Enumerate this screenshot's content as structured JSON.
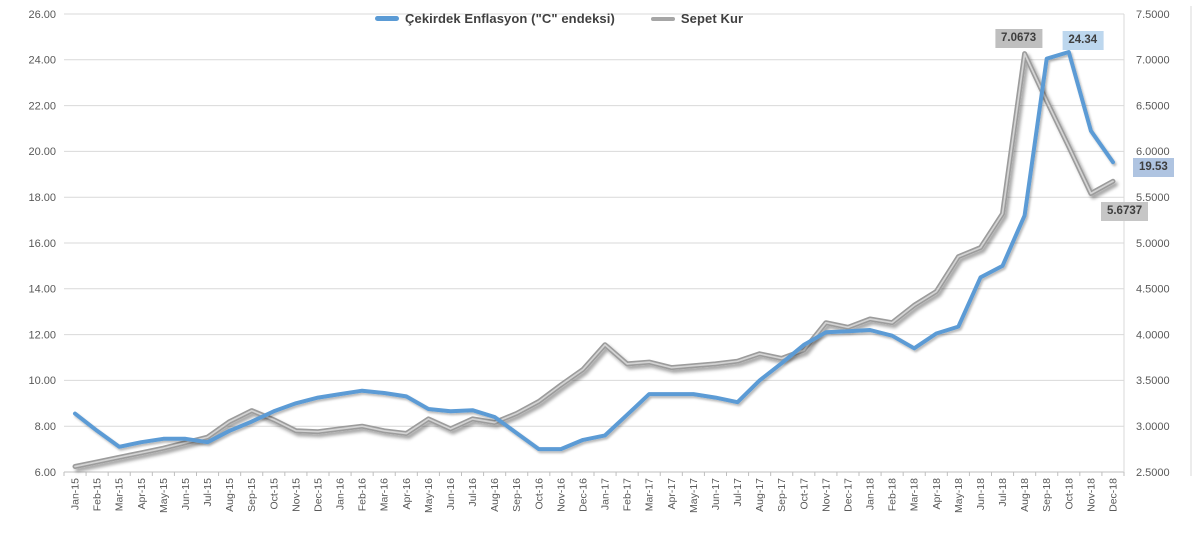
{
  "chart_data": {
    "type": "line",
    "title": "",
    "grid": true,
    "legend_position": "top",
    "categories": [
      "Jan-15",
      "Feb-15",
      "Mar-15",
      "Apr-15",
      "May-15",
      "Jun-15",
      "Jul-15",
      "Aug-15",
      "Sep-15",
      "Oct-15",
      "Nov-15",
      "Dec-15",
      "Jan-16",
      "Feb-16",
      "Mar-16",
      "Apr-16",
      "May-16",
      "Jun-16",
      "Jul-16",
      "Aug-16",
      "Sep-16",
      "Oct-16",
      "Nov-16",
      "Dec-16",
      "Jan-17",
      "Feb-17",
      "Mar-17",
      "Apr-17",
      "May-17",
      "Jun-17",
      "Jul-17",
      "Aug-17",
      "Sep-17",
      "Oct-17",
      "Nov-17",
      "Dec-17",
      "Jan-18",
      "Feb-18",
      "Mar-18",
      "Apr-18",
      "May-18",
      "Jun-18",
      "Jul-18",
      "Aug-18",
      "Sep-18",
      "Oct-18",
      "Nov-18",
      "Dec-18"
    ],
    "series": [
      {
        "name": "Çekirdek Enflasyon (\"C\" endeksi)",
        "axis": "left",
        "color": "#5B9BD5",
        "values": [
          8.55,
          7.8,
          7.1,
          7.3,
          7.45,
          7.45,
          7.3,
          7.8,
          8.2,
          8.65,
          9.0,
          9.25,
          9.4,
          9.55,
          9.45,
          9.3,
          8.75,
          8.65,
          8.7,
          8.4,
          7.7,
          7.0,
          7.0,
          7.4,
          7.6,
          8.5,
          9.4,
          9.4,
          9.4,
          9.25,
          9.05,
          10.0,
          10.75,
          11.55,
          12.1,
          12.15,
          12.2,
          11.95,
          11.4,
          12.05,
          12.35,
          14.5,
          15.0,
          17.2,
          24.05,
          24.34,
          20.9,
          19.53
        ]
      },
      {
        "name": "Sepet Kur",
        "axis": "right",
        "color": "#A6A6A6",
        "values": [
          2.56,
          2.61,
          2.66,
          2.71,
          2.76,
          2.82,
          2.88,
          3.05,
          3.17,
          3.07,
          2.95,
          2.94,
          2.97,
          3.0,
          2.95,
          2.92,
          3.08,
          2.97,
          3.08,
          3.04,
          3.14,
          3.27,
          3.45,
          3.62,
          3.89,
          3.68,
          3.7,
          3.64,
          3.66,
          3.68,
          3.71,
          3.79,
          3.74,
          3.83,
          4.13,
          4.08,
          4.17,
          4.13,
          4.32,
          4.47,
          4.85,
          4.95,
          5.32,
          7.0673,
          6.55,
          6.05,
          5.54,
          5.6737
        ]
      }
    ],
    "left_axis": {
      "min": 6,
      "max": 26,
      "step": 2,
      "tick_labels": [
        "26.00",
        "24.00",
        "22.00",
        "20.00",
        "18.00",
        "16.00",
        "14.00",
        "12.00",
        "10.00",
        "8.00",
        "6.00"
      ]
    },
    "right_axis": {
      "min": 2.5,
      "max": 7.5,
      "step": 0.5,
      "tick_labels": [
        "7.5000",
        "7.0000",
        "6.5000",
        "6.0000",
        "5.5000",
        "5.0000",
        "4.5000",
        "4.0000",
        "3.5000",
        "3.0000",
        "2.5000"
      ]
    },
    "annotations": [
      {
        "text": "7.0673",
        "series_index": 1,
        "category_index": 43,
        "bg": "#BFBFBF",
        "placement": "above-left"
      },
      {
        "text": "24.34",
        "series_index": 0,
        "category_index": 45,
        "bg": "#BDD7EE",
        "placement": "above-right"
      },
      {
        "text": "19.53",
        "series_index": 0,
        "category_index": 47,
        "bg": "#AFC4E1",
        "placement": "right"
      },
      {
        "text": "5.6737",
        "series_index": 1,
        "category_index": 47,
        "bg": "#C6C6C6",
        "placement": "below"
      }
    ]
  },
  "colors": {
    "gridline": "#D9D9D9",
    "axis_line": "#BFBFBF",
    "axis_text": "#595959",
    "gray_line_highlight": "#D3D3D3",
    "gray_line_main": "#9C9C9C"
  }
}
